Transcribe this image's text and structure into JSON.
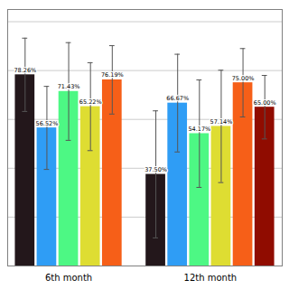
{
  "chart_data": {
    "type": "bar",
    "categories": [
      "6th month",
      "12th month"
    ],
    "values": [
      [
        78.26,
        56.52,
        71.43,
        65.22,
        76.19
      ],
      [
        37.5,
        66.67,
        54.17,
        57.14,
        75.0,
        65.0
      ]
    ],
    "value_labels": [
      [
        "78.26%",
        "56.52%",
        "71.43%",
        "65.22%",
        "76.19%"
      ],
      [
        "37.50%",
        "66.67%",
        "54.17%",
        "57.14%",
        "75.00%",
        "65.00%"
      ]
    ],
    "errors": [
      [
        15.0,
        17.0,
        20.0,
        18.0,
        14.0
      ],
      [
        26.0,
        20.0,
        22.0,
        23.0,
        14.0,
        13.0
      ]
    ],
    "data_labels": true,
    "ylim": [
      0,
      105
    ],
    "yticks": [
      20,
      40,
      60,
      80,
      100
    ],
    "grid": true,
    "tick_labels": "x"
  }
}
